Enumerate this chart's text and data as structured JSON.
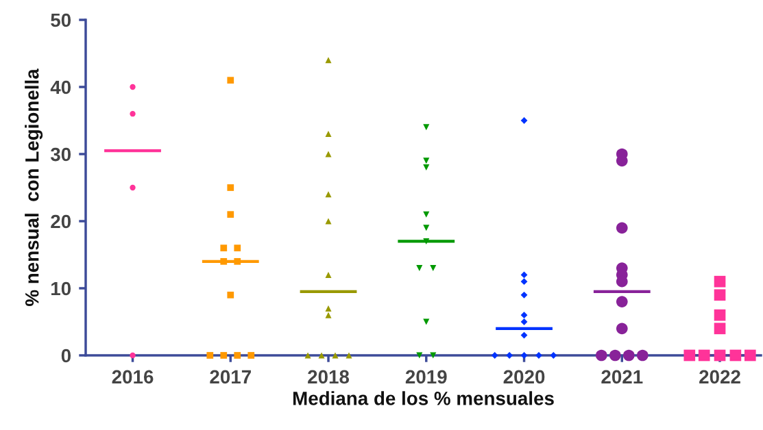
{
  "chart_data": {
    "type": "scatter",
    "xlim": [
      2015.52,
      2022.42
    ],
    "xticks": [
      2016,
      2017,
      2018,
      2019,
      2020,
      2021,
      2022
    ],
    "xlabel": "Mediana de los % mensuales",
    "ylabel": "% nensual  con Legionella",
    "ylim": [
      0,
      50
    ],
    "yticks": [
      0,
      10,
      20,
      30,
      40,
      50
    ],
    "grid": false,
    "series": [
      {
        "color": "#ff3399",
        "marker": "circle",
        "x": [
          2016,
          2016,
          2016,
          2016
        ],
        "values": [
          40,
          36,
          25,
          0
        ]
      },
      {
        "color": "#ff9900",
        "marker": "square",
        "x": [
          2017,
          2017,
          2017,
          2016.93,
          2017.07,
          2016.93,
          2017.07,
          2017,
          2016.79,
          2016.93,
          2017.07,
          2017.21
        ],
        "values": [
          41,
          25,
          21,
          16,
          16,
          14,
          14,
          9,
          0,
          0,
          0,
          0
        ]
      },
      {
        "color": "#999900",
        "marker": "triangle",
        "x": [
          2018,
          2018,
          2018,
          2018,
          2018,
          2018,
          2018,
          2018,
          2017.79,
          2017.93,
          2018.07,
          2018.21
        ],
        "values": [
          44,
          33,
          30,
          24,
          20,
          12,
          7,
          6,
          0,
          0,
          0,
          0
        ]
      },
      {
        "color": "#009900",
        "marker": "triangle_down",
        "x": [
          2019,
          2019,
          2019,
          2019,
          2019,
          2019,
          2018.93,
          2019.07,
          2019,
          2018.93,
          2019.07
        ],
        "values": [
          34,
          29,
          28,
          21,
          19,
          17,
          13,
          13,
          5,
          0,
          0
        ]
      },
      {
        "color": "#0033ff",
        "marker": "diamond",
        "x": [
          2020,
          2020,
          2020,
          2020,
          2020,
          2020,
          2020,
          2019.7,
          2019.85,
          2020,
          2020.15,
          2020.3
        ],
        "values": [
          35,
          12,
          11,
          9,
          6,
          5,
          3,
          0,
          0,
          0,
          0,
          0
        ]
      },
      {
        "color": "#882299",
        "marker": "circle",
        "x": [
          2021,
          2021,
          2021,
          2021,
          2021,
          2021,
          2021,
          2021,
          2020.79,
          2020.93,
          2021.07,
          2021.21
        ],
        "values": [
          30,
          29,
          19,
          13,
          12,
          11,
          8,
          4,
          0,
          0,
          0,
          0
        ]
      },
      {
        "color": "#ff3399",
        "marker": "square",
        "x": [
          2022,
          2022,
          2022,
          2022,
          2021.69,
          2021.84,
          2022,
          2022.16,
          2022.31
        ],
        "values": [
          11,
          9,
          6,
          4,
          0,
          0,
          0,
          0,
          0
        ]
      },
      {
        "type": "line",
        "color": "#ff3399",
        "x": [
          2015.71,
          2016.29
        ],
        "values": [
          30.5,
          30.5
        ]
      },
      {
        "type": "line",
        "color": "#ff9900",
        "x": [
          2016.71,
          2017.29
        ],
        "values": [
          14,
          14
        ]
      },
      {
        "type": "line",
        "color": "#999900",
        "x": [
          2017.71,
          2018.29
        ],
        "values": [
          9.5,
          9.5
        ]
      },
      {
        "type": "line",
        "color": "#009900",
        "x": [
          2018.71,
          2019.29
        ],
        "values": [
          17,
          17
        ]
      },
      {
        "type": "line",
        "color": "#0033ff",
        "x": [
          2019.71,
          2020.29
        ],
        "values": [
          4,
          4
        ]
      },
      {
        "type": "line",
        "color": "#882299",
        "x": [
          2020.71,
          2021.29
        ],
        "values": [
          9.5,
          9.5
        ]
      },
      {
        "type": "line",
        "color": "#ff3399",
        "x": [
          2021.71,
          2022.29
        ],
        "values": [
          0,
          0
        ]
      }
    ]
  }
}
